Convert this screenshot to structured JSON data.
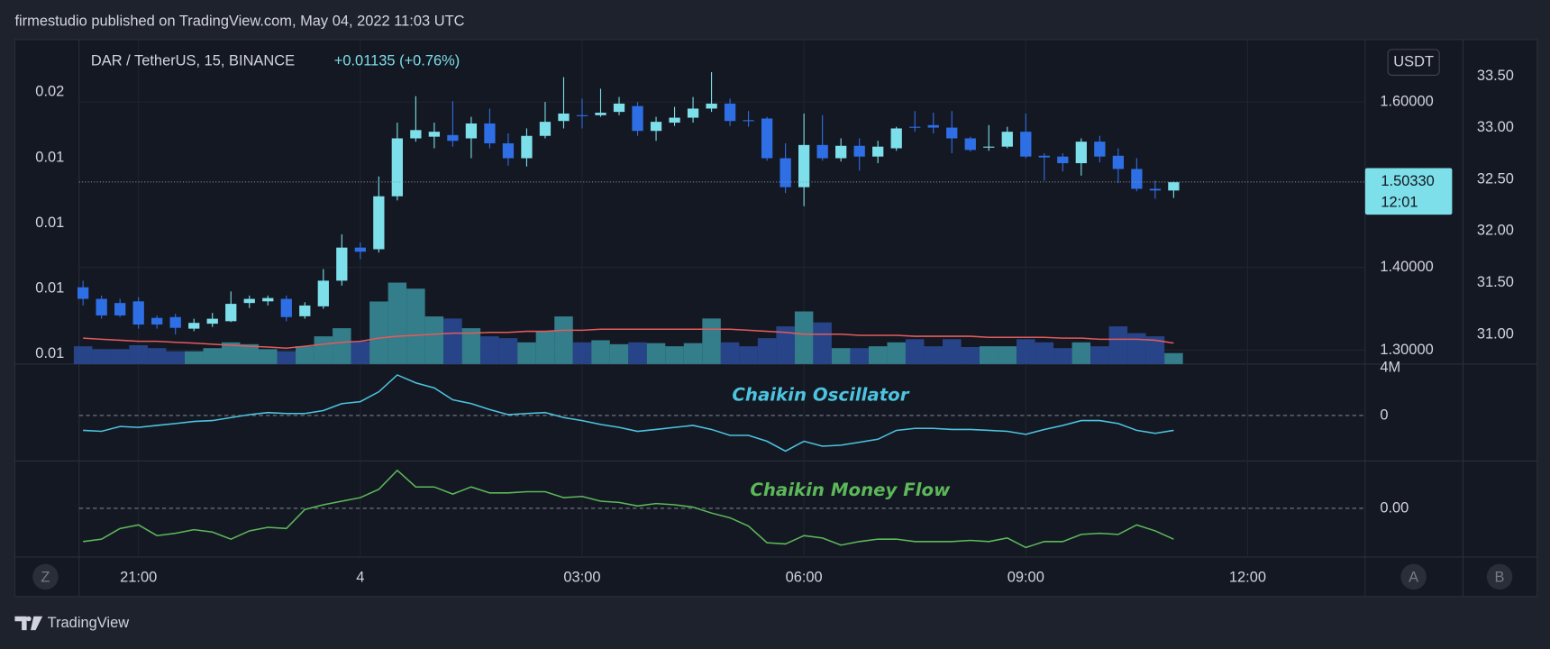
{
  "header": {
    "title": "firmestudio published on TradingView.com, May 04, 2022 11:03 UTC"
  },
  "footer": {
    "brand": "TradingView"
  },
  "controls": [
    "Z",
    "A",
    "B"
  ],
  "chart_data": [
    {
      "type": "candlestick",
      "symbol": "DAR / TetherUS, 15, BINANCE",
      "change": "+0.01135 (+0.76%)",
      "currency": "USDT",
      "categories": [
        null,
        null,
        null,
        "21:00",
        null,
        null,
        null,
        null,
        null,
        null,
        null,
        null,
        null,
        null,
        null,
        "4",
        null,
        null,
        null,
        null,
        null,
        null,
        null,
        null,
        null,
        null,
        null,
        "03:00",
        null,
        null,
        null,
        null,
        null,
        null,
        null,
        null,
        null,
        null,
        null,
        "06:00",
        null,
        null,
        null,
        null,
        null,
        null,
        null,
        null,
        null,
        null,
        null,
        "09:00",
        null,
        null,
        null,
        null,
        null,
        null,
        null,
        null,
        null,
        null,
        null,
        "12:00"
      ],
      "open": [
        1.376,
        1.362,
        1.357,
        1.359,
        1.339,
        1.34,
        1.326,
        1.332,
        1.335,
        1.357,
        1.359,
        1.362,
        1.341,
        1.353,
        1.384,
        1.424,
        1.422,
        1.486,
        1.556,
        1.558,
        1.56,
        1.556,
        1.574,
        1.55,
        1.532,
        1.559,
        1.577,
        1.584,
        1.584,
        1.588,
        1.595,
        1.565,
        1.575,
        1.581,
        1.592,
        1.598,
        1.578,
        1.58,
        1.532,
        1.497,
        1.548,
        1.532,
        1.547,
        1.534,
        1.544,
        1.57,
        1.572,
        1.569,
        1.556,
        1.545,
        1.546,
        1.564,
        1.535,
        1.534,
        1.526,
        1.552,
        1.535,
        1.519,
        1.495,
        1.493,
        null,
        null,
        null,
        null
      ],
      "high": [
        1.384,
        1.366,
        1.362,
        1.364,
        1.342,
        1.344,
        1.338,
        1.345,
        1.371,
        1.366,
        1.366,
        1.366,
        1.358,
        1.398,
        1.44,
        1.43,
        1.51,
        1.575,
        1.607,
        1.575,
        1.601,
        1.582,
        1.592,
        1.562,
        1.568,
        1.6,
        1.63,
        1.604,
        1.616,
        1.606,
        1.6,
        1.582,
        1.594,
        1.606,
        1.636,
        1.604,
        1.589,
        1.582,
        1.55,
        1.586,
        1.584,
        1.556,
        1.556,
        1.553,
        1.57,
        1.589,
        1.587,
        1.589,
        1.558,
        1.572,
        1.57,
        1.586,
        1.538,
        1.538,
        1.556,
        1.559,
        1.544,
        1.532,
        1.505,
        1.504,
        null,
        null,
        null,
        null
      ],
      "low": [
        1.354,
        1.338,
        1.34,
        1.326,
        1.326,
        1.319,
        1.323,
        1.328,
        1.334,
        1.351,
        1.354,
        1.335,
        1.338,
        1.35,
        1.378,
        1.41,
        1.418,
        1.481,
        1.552,
        1.544,
        1.546,
        1.532,
        1.544,
        1.523,
        1.522,
        1.556,
        1.568,
        1.568,
        1.582,
        1.584,
        1.559,
        1.553,
        1.571,
        1.575,
        1.588,
        1.571,
        1.57,
        1.529,
        1.49,
        1.474,
        1.529,
        1.528,
        1.517,
        1.526,
        1.541,
        1.564,
        1.562,
        1.538,
        1.54,
        1.541,
        1.544,
        1.532,
        1.505,
        1.516,
        1.511,
        1.527,
        1.502,
        1.492,
        1.483,
        1.484,
        null,
        null,
        null,
        null
      ],
      "close": [
        1.362,
        1.342,
        1.342,
        1.331,
        1.331,
        1.327,
        1.333,
        1.338,
        1.356,
        1.362,
        1.363,
        1.34,
        1.354,
        1.384,
        1.424,
        1.419,
        1.486,
        1.556,
        1.566,
        1.564,
        1.553,
        1.574,
        1.55,
        1.532,
        1.559,
        1.576,
        1.586,
        1.583,
        1.587,
        1.598,
        1.565,
        1.576,
        1.581,
        1.592,
        1.598,
        1.577,
        1.577,
        1.532,
        1.497,
        1.548,
        1.532,
        1.547,
        1.534,
        1.546,
        1.568,
        1.569,
        1.569,
        1.556,
        1.542,
        1.546,
        1.564,
        1.534,
        1.533,
        1.526,
        1.552,
        1.534,
        1.519,
        1.495,
        1.493,
        1.503,
        null,
        null,
        null,
        null
      ],
      "up_color": "#7ddfe9",
      "down_color": "#2f6fe6",
      "ylim": [
        1.2832,
        1.6754
      ],
      "yticks": [
        {
          "value": 1.3,
          "label": "1.30000"
        },
        {
          "value": 1.4,
          "label": "1.40000"
        },
        {
          "value": 1.6,
          "label": "1.60000"
        }
      ],
      "grid": true,
      "last_price": {
        "value": 1.5033,
        "label": "1.50330"
      },
      "countdown": "12:01",
      "last_price_color": "#7ddfe9",
      "volume": {
        "values": [
          0.0053,
          0.00519,
          0.00519,
          0.00534,
          0.00523,
          0.00511,
          0.00511,
          0.00523,
          0.00545,
          0.00538,
          0.00519,
          0.00511,
          0.0053,
          0.00568,
          0.00599,
          0.00549,
          0.00701,
          0.00773,
          0.0075,
          0.00644,
          0.00636,
          0.00599,
          0.00568,
          0.00561,
          0.00545,
          0.00587,
          0.00644,
          0.00545,
          0.00553,
          0.00538,
          0.00545,
          0.00542,
          0.0053,
          0.00542,
          0.00636,
          0.00545,
          0.0053,
          0.00561,
          0.00606,
          0.00663,
          0.00621,
          0.00523,
          0.00523,
          0.0053,
          0.00545,
          0.00557,
          0.0053,
          0.00557,
          0.00527,
          0.0053,
          0.0053,
          0.00557,
          0.00545,
          0.00523,
          0.00545,
          0.0053,
          0.00606,
          0.0058,
          0.00568,
          0.00504,
          null,
          null,
          null,
          null
        ],
        "up_color": "#3a8f9c",
        "down_color": "#2a4c9a",
        "axis": "y3"
      },
      "volume_ma": {
        "values": [
          0.00561,
          0.00557,
          0.00553,
          0.00549,
          0.00549,
          0.00545,
          0.00542,
          0.00538,
          0.00534,
          0.0053,
          0.00527,
          0.00523,
          0.0053,
          0.00538,
          0.00545,
          0.00549,
          0.00561,
          0.00568,
          0.00572,
          0.00576,
          0.0058,
          0.0058,
          0.00583,
          0.00583,
          0.00587,
          0.00587,
          0.00591,
          0.00591,
          0.00595,
          0.00595,
          0.00595,
          0.00595,
          0.00595,
          0.00595,
          0.00595,
          0.00595,
          0.00591,
          0.00587,
          0.00583,
          0.00576,
          0.00576,
          0.00576,
          0.00572,
          0.00572,
          0.00572,
          0.00568,
          0.00568,
          0.00568,
          0.00568,
          0.00564,
          0.00564,
          0.00564,
          0.00564,
          0.00561,
          0.00561,
          0.00557,
          0.00557,
          0.00557,
          0.00553,
          0.00542,
          null,
          null,
          null,
          null
        ],
        "color": "#e35b5b",
        "axis": "y3"
      },
      "y3lim": [
        0.00462,
        0.01701
      ],
      "y3ticks": [
        {
          "value": 0.015,
          "label": "0.02"
        },
        {
          "value": 0.0125,
          "label": "0.01"
        },
        {
          "value": 0.01,
          "label": "0.01"
        },
        {
          "value": 0.0075,
          "label": "0.01"
        },
        {
          "value": 0.005,
          "label": "0.01"
        }
      ],
      "y2lim": [
        30.713,
        33.854
      ],
      "y2ticks": [
        {
          "value": 33.5,
          "label": "33.50"
        },
        {
          "value": 33,
          "label": "33.00"
        },
        {
          "value": 32.5,
          "label": "32.50"
        },
        {
          "value": 32,
          "label": "32.00"
        },
        {
          "value": 31.5,
          "label": "31.50"
        },
        {
          "value": 31,
          "label": "31.00"
        }
      ]
    },
    {
      "type": "line",
      "title": "Chaikin Oscillator",
      "color": "#4cc4df",
      "values": [
        -1250000,
        -1330000,
        -920000,
        -1000000,
        -830000,
        -670000,
        -500000,
        -420000,
        -170000,
        80000,
        250000,
        170000,
        170000,
        420000,
        1000000,
        1170000,
        2000000,
        3420000,
        2750000,
        2330000,
        1330000,
        1000000,
        500000,
        80000,
        170000,
        250000,
        -170000,
        -420000,
        -750000,
        -1000000,
        -1330000,
        -1170000,
        -1000000,
        -830000,
        -1170000,
        -1670000,
        -1670000,
        -2170000,
        -3000000,
        -2170000,
        -2580000,
        -2500000,
        -2250000,
        -2000000,
        -1250000,
        -1080000,
        -1080000,
        -1170000,
        -1170000,
        -1250000,
        -1330000,
        -1580000,
        -1170000,
        -830000,
        -420000,
        -420000,
        -670000,
        -1250000,
        -1500000,
        -1250000,
        null,
        null,
        null,
        null
      ],
      "ylim": [
        -3750000,
        4170000
      ],
      "yticks": [
        {
          "value": 4000000,
          "label": "4M"
        },
        0
      ],
      "zero_line": true
    },
    {
      "type": "line",
      "title": "Chaikin Money Flow",
      "color": "#5db85a",
      "values": [
        -0.28,
        -0.26,
        -0.17,
        -0.14,
        -0.23,
        -0.21,
        -0.18,
        -0.2,
        -0.26,
        -0.19,
        -0.16,
        -0.17,
        -0.01,
        0.03,
        0.06,
        0.09,
        0.16,
        0.32,
        0.18,
        0.18,
        0.12,
        0.18,
        0.13,
        0.13,
        0.14,
        0.14,
        0.09,
        0.1,
        0.06,
        0.05,
        0.02,
        0.04,
        0.03,
        0.01,
        -0.04,
        -0.08,
        -0.15,
        -0.29,
        -0.3,
        -0.23,
        -0.25,
        -0.31,
        -0.28,
        -0.26,
        -0.26,
        -0.28,
        -0.28,
        -0.28,
        -0.27,
        -0.28,
        -0.25,
        -0.33,
        -0.28,
        -0.28,
        -0.22,
        -0.21,
        -0.22,
        -0.14,
        -0.19,
        -0.26,
        null,
        null,
        null,
        null
      ],
      "ylim": [
        -0.41,
        0.39
      ],
      "yticks": [
        {
          "value": 0,
          "label": "0.00"
        }
      ],
      "zero_line": true
    }
  ]
}
